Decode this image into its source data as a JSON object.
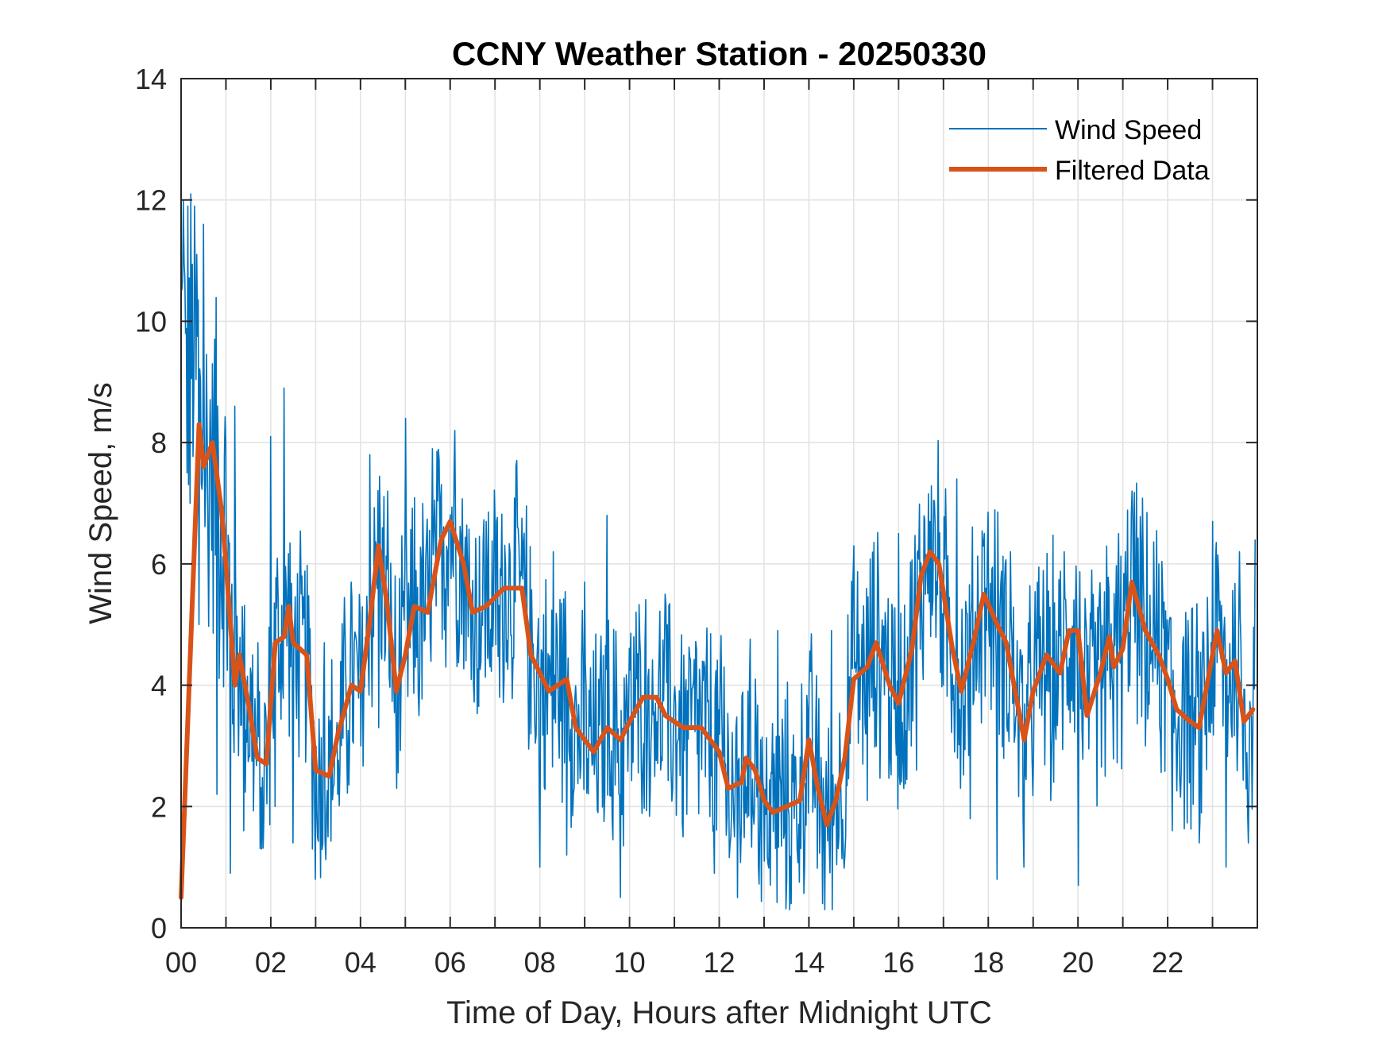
{
  "chart_data": {
    "type": "line",
    "title": "CCNY Weather Station - 20250330",
    "xlabel": "Time of Day, Hours after Midnight UTC",
    "ylabel": "Wind Speed, m/s",
    "xlim": [
      0,
      24
    ],
    "ylim": [
      0,
      14
    ],
    "grid": true,
    "legend_position": "top-right",
    "x_ticks": [
      0,
      2,
      4,
      6,
      8,
      10,
      12,
      14,
      16,
      18,
      20,
      22
    ],
    "x_tick_labels": [
      "00",
      "02",
      "04",
      "06",
      "08",
      "10",
      "12",
      "14",
      "16",
      "18",
      "20",
      "22"
    ],
    "x_minor_ticks": [
      1,
      3,
      5,
      7,
      9,
      11,
      13,
      15,
      17,
      19,
      21,
      23
    ],
    "y_ticks": [
      0,
      2,
      4,
      6,
      8,
      10,
      12,
      14
    ],
    "y_tick_labels": [
      "0",
      "2",
      "4",
      "6",
      "8",
      "10",
      "12",
      "14"
    ],
    "series": [
      {
        "name": "Wind Speed",
        "color": "#0072BD",
        "style": "thin-noisy",
        "x": [
          0.0,
          0.05,
          0.1,
          0.15,
          0.2,
          0.3,
          0.4,
          0.5,
          0.6,
          0.7,
          0.8,
          1.0,
          1.1,
          1.2,
          1.4,
          1.6,
          1.8,
          2.0,
          2.1,
          2.3,
          2.5,
          2.7,
          3.0,
          3.2,
          3.5,
          3.8,
          4.0,
          4.2,
          4.4,
          4.6,
          4.8,
          5.0,
          5.3,
          5.6,
          5.9,
          6.1,
          6.4,
          6.8,
          7.1,
          7.5,
          7.8,
          8.0,
          8.3,
          8.6,
          9.0,
          9.3,
          9.5,
          9.8,
          10.1,
          10.5,
          10.8,
          11.2,
          11.5,
          11.9,
          12.1,
          12.4,
          12.8,
          13.0,
          13.3,
          13.6,
          14.0,
          14.3,
          14.5,
          14.8,
          15.0,
          15.3,
          15.7,
          16.0,
          16.4,
          16.7,
          17.0,
          17.3,
          17.6,
          17.9,
          18.2,
          18.5,
          18.8,
          19.1,
          19.4,
          19.7,
          20.0,
          20.3,
          20.6,
          20.9,
          21.2,
          21.5,
          21.8,
          22.1,
          22.4,
          22.7,
          23.0,
          23.3,
          23.6,
          23.8,
          23.95
        ],
        "y": [
          10.7,
          12.0,
          9.8,
          11.9,
          7.0,
          11.9,
          5.0,
          11.6,
          6.5,
          9.3,
          2.2,
          8.0,
          0.9,
          8.6,
          1.6,
          4.5,
          1.3,
          8.1,
          2.0,
          8.9,
          1.4,
          5.8,
          0.8,
          4.7,
          2.2,
          5.7,
          3.0,
          7.8,
          3.3,
          7.2,
          2.3,
          8.4,
          3.5,
          7.9,
          4.3,
          8.2,
          4.8,
          6.7,
          3.8,
          6.6,
          3.2,
          1.0,
          6.2,
          1.2,
          5.7,
          1.9,
          6.8,
          0.5,
          4.8,
          3.4,
          5.5,
          1.5,
          4.6,
          0.9,
          4.3,
          0.5,
          4.1,
          1.1,
          4.9,
          0.4,
          4.0,
          0.4,
          4.9,
          1.2,
          6.3,
          2.1,
          5.2,
          6.5,
          2.6,
          6.7,
          4.0,
          7.4,
          1.8,
          6.3,
          0.8,
          6.2,
          1.0,
          5.7,
          2.1,
          6.2,
          0.7,
          5.9,
          2.5,
          6.5,
          7.2,
          3.0,
          6.0,
          1.6,
          5.2,
          1.4,
          6.7,
          1.0,
          6.2,
          1.4,
          6.4
        ]
      },
      {
        "name": "Filtered Data",
        "color": "#D95319",
        "style": "thick-smooth",
        "x": [
          0.0,
          0.4,
          0.5,
          0.7,
          0.9,
          1.0,
          1.2,
          1.3,
          1.5,
          1.7,
          1.9,
          2.1,
          2.3,
          2.4,
          2.5,
          2.8,
          3.0,
          3.3,
          3.5,
          3.8,
          4.0,
          4.2,
          4.4,
          4.6,
          4.8,
          5.0,
          5.2,
          5.5,
          5.8,
          6.0,
          6.3,
          6.5,
          6.8,
          7.2,
          7.6,
          7.8,
          8.0,
          8.2,
          8.6,
          8.8,
          9.2,
          9.5,
          9.8,
          10.0,
          10.3,
          10.6,
          10.8,
          11.2,
          11.6,
          12.0,
          12.2,
          12.5,
          12.6,
          12.8,
          13.0,
          13.2,
          13.5,
          13.8,
          14.0,
          14.2,
          14.4,
          14.6,
          14.8,
          15.0,
          15.3,
          15.5,
          15.8,
          16.0,
          16.3,
          16.5,
          16.7,
          16.9,
          17.2,
          17.4,
          17.7,
          17.9,
          18.2,
          18.4,
          18.8,
          19.0,
          19.3,
          19.6,
          19.8,
          20.0,
          20.2,
          20.5,
          20.7,
          20.8,
          21.0,
          21.2,
          21.5,
          21.8,
          22.0,
          22.2,
          22.5,
          22.7,
          23.0,
          23.1,
          23.3,
          23.5,
          23.7,
          23.9
        ],
        "y": [
          0.5,
          8.3,
          7.6,
          8.0,
          6.9,
          6.0,
          4.0,
          4.5,
          3.7,
          2.8,
          2.7,
          4.7,
          4.8,
          5.3,
          4.7,
          4.5,
          2.6,
          2.5,
          3.2,
          4.0,
          3.9,
          5.0,
          6.3,
          5.3,
          3.9,
          4.5,
          5.3,
          5.2,
          6.4,
          6.7,
          6.0,
          5.2,
          5.3,
          5.6,
          5.6,
          4.5,
          4.2,
          3.9,
          4.1,
          3.3,
          2.9,
          3.3,
          3.1,
          3.4,
          3.8,
          3.8,
          3.5,
          3.3,
          3.3,
          2.9,
          2.3,
          2.4,
          2.8,
          2.6,
          2.1,
          1.9,
          2.0,
          2.1,
          3.1,
          2.3,
          1.7,
          2.1,
          2.8,
          4.1,
          4.3,
          4.7,
          4.0,
          3.7,
          4.6,
          5.8,
          6.2,
          6.0,
          4.6,
          3.9,
          4.8,
          5.5,
          5.0,
          4.7,
          3.1,
          3.9,
          4.5,
          4.2,
          4.9,
          4.9,
          3.5,
          4.2,
          4.8,
          4.3,
          4.6,
          5.7,
          4.9,
          4.5,
          4.1,
          3.6,
          3.4,
          3.3,
          4.5,
          4.9,
          4.2,
          4.4,
          3.4,
          3.6
        ]
      }
    ]
  }
}
